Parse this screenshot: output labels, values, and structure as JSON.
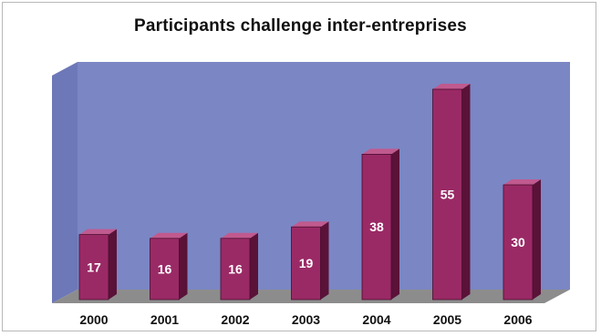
{
  "chart_data": {
    "type": "bar",
    "title": "Participants challenge inter-entreprises",
    "categories": [
      "2000",
      "2001",
      "2002",
      "2003",
      "2004",
      "2005",
      "2006"
    ],
    "values": [
      17,
      16,
      16,
      19,
      38,
      55,
      30
    ],
    "ylim": [
      0,
      60
    ],
    "grid": false,
    "legend": "none",
    "colors": {
      "plot_back": "#7b86c4",
      "plot_side": "#6d78b8",
      "floor": "#8c8c8c",
      "bar_front": "#9a2a66",
      "bar_top": "#c05a8f",
      "bar_side": "#5a1238"
    }
  }
}
